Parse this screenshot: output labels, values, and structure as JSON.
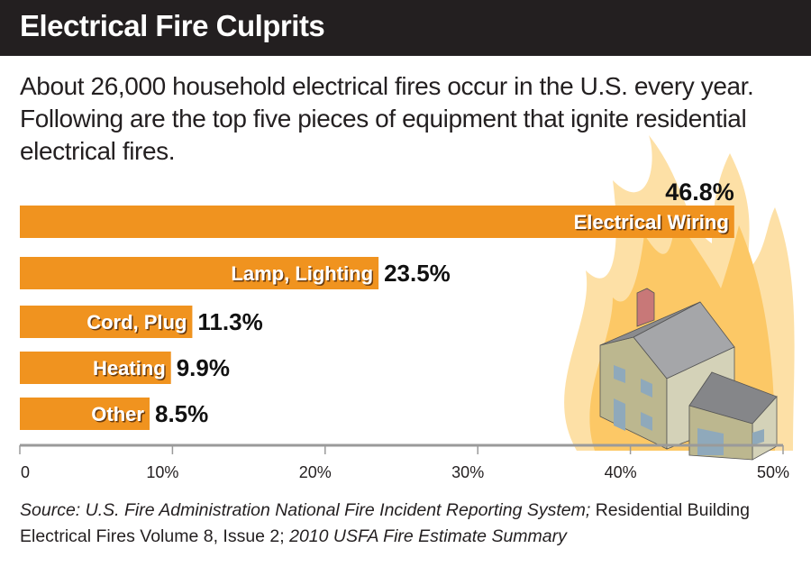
{
  "header": {
    "title": "Electrical Fire Culprits"
  },
  "intro": "About 26,000 household electrical fires occur in the U.S. every year. Following are the top five pieces of equipment that ignite residential electrical fires.",
  "chart_data": {
    "type": "bar",
    "orientation": "horizontal",
    "title": "Electrical Fire Culprits",
    "categories": [
      "Electrical Wiring",
      "Lamp, Lighting",
      "Cord, Plug",
      "Heating",
      "Other"
    ],
    "values": [
      46.8,
      23.5,
      11.3,
      9.9,
      8.5
    ],
    "value_labels": [
      "46.8%",
      "23.5%",
      "11.3%",
      "9.9%",
      "8.5%"
    ],
    "xlim": [
      0,
      50
    ],
    "xticks": [
      0,
      10,
      20,
      30,
      40,
      50
    ],
    "xtick_labels": [
      "0",
      "10%",
      "20%",
      "30%",
      "40%",
      "50%"
    ],
    "xlabel": "",
    "ylabel": "",
    "grid": false,
    "bar_color": "#f0931f"
  },
  "source": {
    "part1": "Source:  U.S. Fire Administration National Fire Incident Reporting System;",
    "part2": " Residential Building Electrical Fires Volume 8, Issue 2;",
    "part3": " 2010 USFA Fire Estimate Summary"
  }
}
